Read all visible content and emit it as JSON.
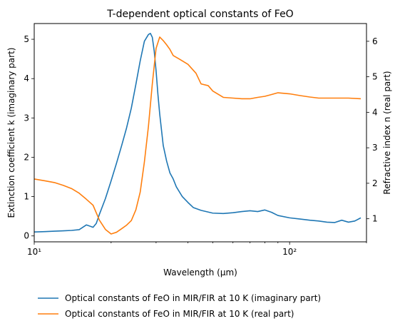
{
  "chart_data": {
    "type": "line",
    "title": "T-dependent optical constants of FeO",
    "xlabel": "Wavelength (μm)",
    "ylabel_left": "Extinction coefficient k (imaginary part)",
    "ylabel_right": "Refractive index n (real part)",
    "xscale": "log",
    "xlim": [
      10,
      200
    ],
    "ylim_left": [
      -0.15,
      5.4
    ],
    "ylim_right": [
      0.35,
      6.5
    ],
    "x_ticks": [
      10,
      100
    ],
    "x_tick_labels": [
      "10¹",
      "10²"
    ],
    "y_left_ticks": [
      0,
      1,
      2,
      3,
      4,
      5
    ],
    "y_left_tick_labels": [
      "0",
      "1",
      "2",
      "3",
      "4",
      "5"
    ],
    "y_right_ticks": [
      1,
      2,
      3,
      4,
      5,
      6
    ],
    "y_right_tick_labels": [
      "1",
      "2",
      "3",
      "4",
      "5",
      "6"
    ],
    "grid": false,
    "legend_position": "below",
    "series": [
      {
        "name": "Optical constants of FeO in MIR/FIR at 10 K (imaginary part)",
        "color": "#1f77b4",
        "axis": "left",
        "x": [
          10,
          11,
          12,
          13,
          14,
          15,
          16,
          17,
          17.5,
          18,
          19,
          20,
          21,
          22,
          23,
          24,
          25,
          26,
          27,
          28,
          28.5,
          29,
          29.5,
          30,
          30.5,
          31,
          32,
          33,
          34,
          35,
          36,
          38,
          40,
          42,
          45,
          50,
          55,
          60,
          65,
          70,
          75,
          80,
          85,
          90,
          100,
          110,
          120,
          130,
          140,
          150,
          160,
          170,
          180,
          190
        ],
        "y": [
          0.1,
          0.11,
          0.12,
          0.13,
          0.14,
          0.16,
          0.28,
          0.22,
          0.32,
          0.55,
          0.95,
          1.4,
          1.85,
          2.3,
          2.75,
          3.25,
          3.85,
          4.45,
          4.95,
          5.12,
          5.15,
          5.05,
          4.7,
          4.2,
          3.6,
          3.1,
          2.3,
          1.9,
          1.6,
          1.45,
          1.25,
          1.0,
          0.85,
          0.72,
          0.65,
          0.58,
          0.57,
          0.59,
          0.62,
          0.64,
          0.62,
          0.66,
          0.6,
          0.52,
          0.46,
          0.43,
          0.4,
          0.38,
          0.35,
          0.34,
          0.4,
          0.35,
          0.38,
          0.46
        ]
      },
      {
        "name": "Optical constants of FeO in MIR/FIR at 10 K (real part)",
        "color": "#ff7f0e",
        "axis": "right",
        "x": [
          10,
          11,
          12,
          13,
          14,
          15,
          16,
          17,
          18,
          19,
          20,
          21,
          22,
          23,
          24,
          25,
          26,
          27,
          28,
          29,
          30,
          31,
          32,
          33,
          34,
          35,
          37,
          40,
          43,
          45,
          48,
          50,
          55,
          60,
          65,
          70,
          75,
          80,
          85,
          90,
          100,
          110,
          120,
          130,
          150,
          170,
          190
        ],
        "y": [
          2.12,
          2.07,
          2.02,
          1.94,
          1.85,
          1.72,
          1.55,
          1.38,
          0.96,
          0.7,
          0.57,
          0.62,
          0.72,
          0.82,
          0.95,
          1.25,
          1.75,
          2.6,
          3.6,
          4.8,
          5.8,
          6.12,
          6.02,
          5.9,
          5.77,
          5.6,
          5.5,
          5.35,
          5.1,
          4.8,
          4.75,
          4.6,
          4.42,
          4.4,
          4.38,
          4.38,
          4.42,
          4.45,
          4.5,
          4.55,
          4.52,
          4.47,
          4.43,
          4.4,
          4.4,
          4.4,
          4.38
        ]
      }
    ]
  }
}
